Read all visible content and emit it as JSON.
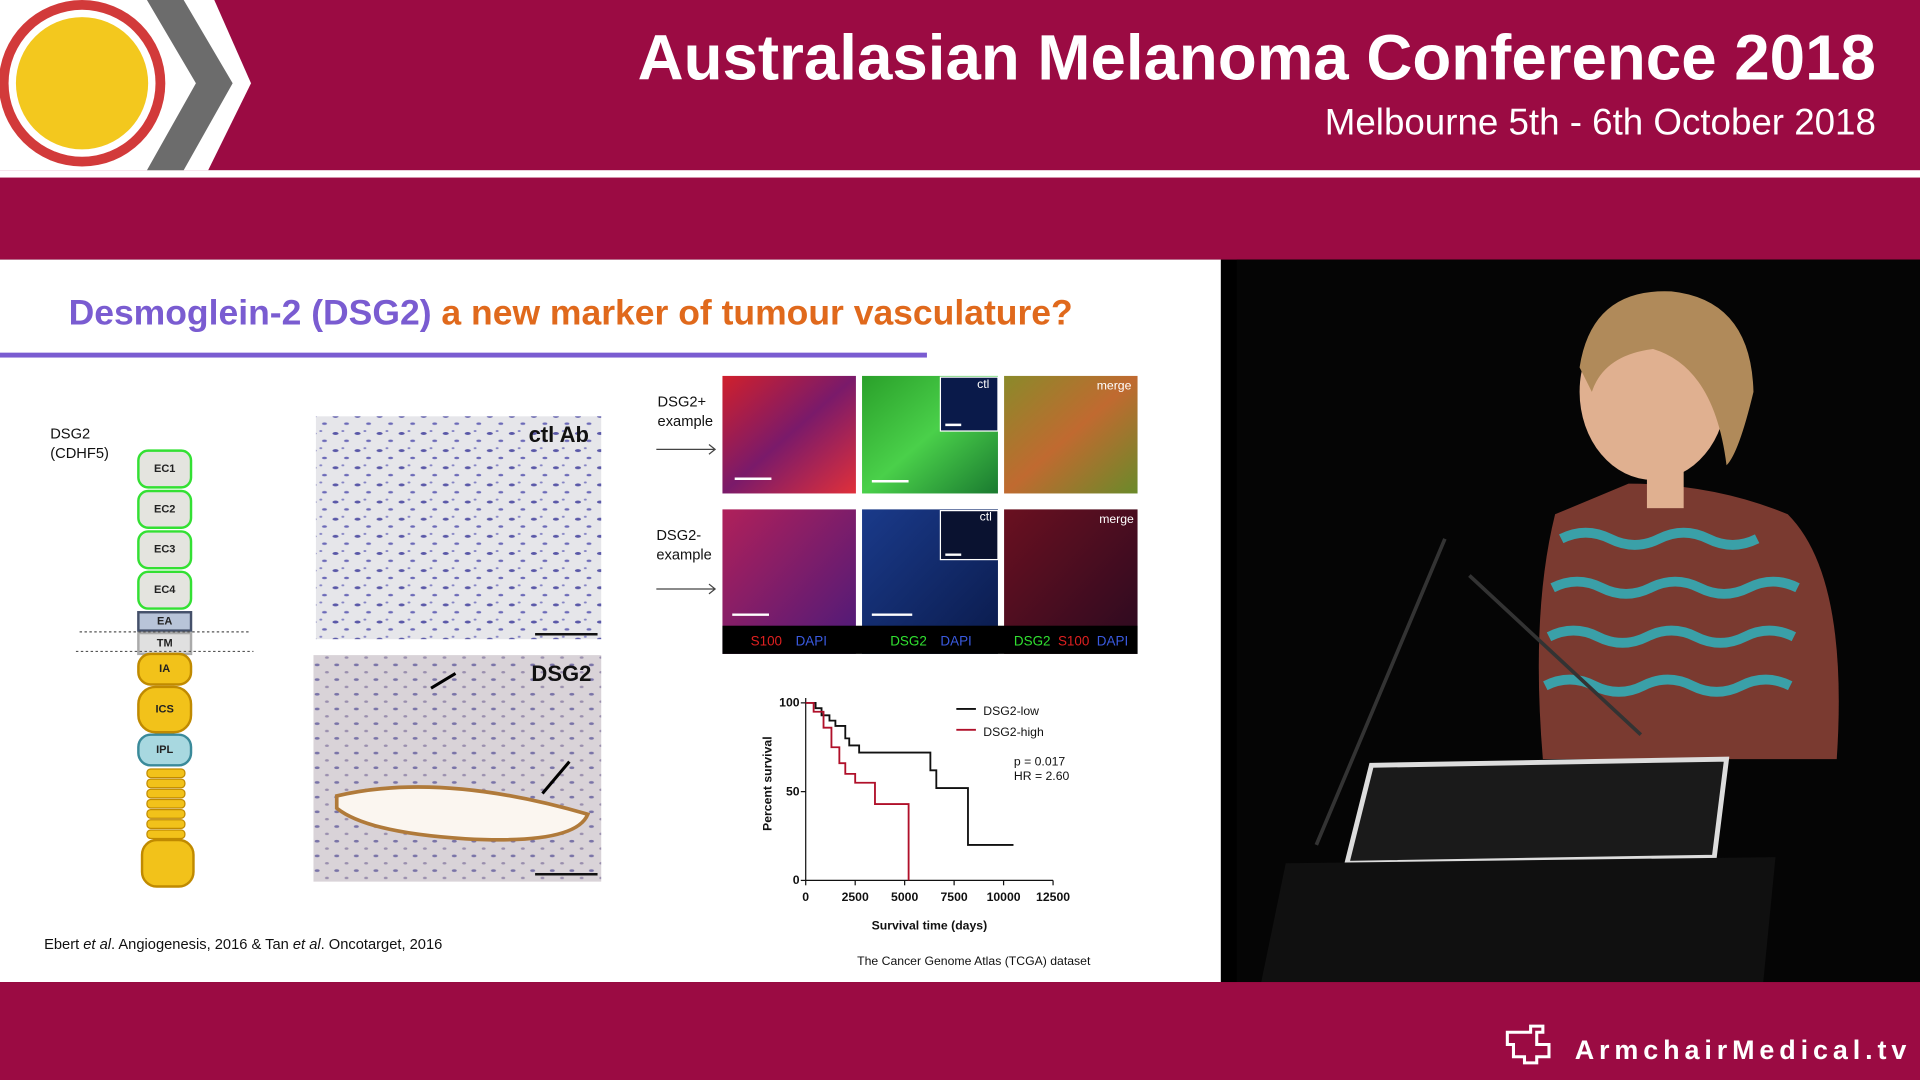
{
  "header": {
    "title": "Australasian Melanoma Conference 2018",
    "subtitle": "Melbourne 5th - 6th October 2018"
  },
  "slide": {
    "title_part1": "Desmoglein-2 (DSG2)",
    "title_part2": "a new marker of tumour vasculature?",
    "protein_label_1": "DSG2",
    "protein_label_2": "(CDHF5)",
    "domains": [
      "EC1",
      "EC2",
      "EC3",
      "EC4",
      "EA",
      "TM",
      "IA",
      "ICS",
      "IPL"
    ],
    "micrograph_labels": [
      "ctl Ab",
      "DSG2"
    ],
    "row1_label": [
      "DSG2+",
      "example"
    ],
    "row2_label": [
      "DSG2-",
      "example"
    ],
    "inset_labels": [
      "ctl",
      "merge",
      "ctl",
      "merge"
    ],
    "stain_labels": [
      [
        "S100",
        "DAPI"
      ],
      [
        "DSG2",
        "DAPI"
      ],
      [
        "DSG2",
        "S100",
        "DAPI"
      ]
    ],
    "citation": [
      "Ebert ",
      "et al",
      ". Angiogenesis, 2016 & Tan ",
      "et al",
      ". Oncotarget, 2016"
    ],
    "dataset_note": "The Cancer Genome Atlas (TCGA) dataset"
  },
  "km_chart": {
    "type": "line",
    "x_label": "Survival time (days)",
    "y_label": "Percent survival",
    "xlim": [
      0,
      12500
    ],
    "xticks": [
      0,
      2500,
      5000,
      7500,
      10000,
      12500
    ],
    "ylim": [
      0,
      100
    ],
    "yticks": [
      0,
      50,
      100
    ],
    "annotations": [
      "p = 0.017",
      "HR = 2.60"
    ],
    "series": [
      {
        "name": "DSG2-low",
        "color": "#111111",
        "x": [
          0,
          500,
          800,
          1200,
          1500,
          2000,
          2200,
          2700,
          6100,
          6300,
          6600,
          8000,
          8200,
          10500
        ],
        "values": [
          100,
          97,
          93,
          90,
          87,
          80,
          76,
          72,
          72,
          62,
          52,
          52,
          20,
          20
        ]
      },
      {
        "name": "DSG2-high",
        "color": "#b0102a",
        "x": [
          0,
          400,
          900,
          1300,
          1700,
          2000,
          2500,
          3300,
          3500,
          4600,
          5100,
          5200
        ],
        "values": [
          100,
          95,
          86,
          75,
          66,
          60,
          55,
          55,
          43,
          43,
          43,
          0
        ]
      }
    ]
  },
  "footer": {
    "brand": "ArmchairMedical.tv"
  }
}
